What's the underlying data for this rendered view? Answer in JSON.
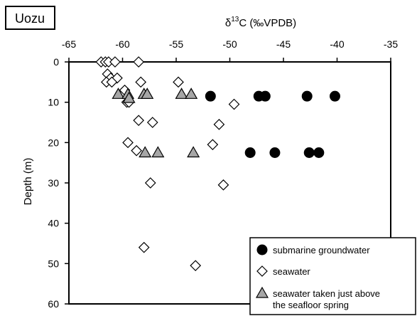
{
  "site_label": "Uozu",
  "chart_data": {
    "type": "scatter",
    "xlabel": {
      "delta": "δ",
      "sup": "13",
      "rest": "C (‰VPDB)"
    },
    "ylabel": "Depth (m)",
    "xlim": [
      -65,
      -35
    ],
    "ylim": [
      0,
      60
    ],
    "y_inverted": true,
    "x_axis_position": "top",
    "x_ticks": [
      -65,
      -60,
      -55,
      -50,
      -45,
      -40,
      -35
    ],
    "y_ticks": [
      0,
      10,
      20,
      30,
      40,
      50,
      60
    ],
    "grid": false,
    "legend_position": "bottom-right",
    "series": [
      {
        "name": "submarine groundwater",
        "marker": "circle",
        "color": "#000000",
        "points": [
          {
            "x": -51.8,
            "y": 8.5
          },
          {
            "x": -47.3,
            "y": 8.5
          },
          {
            "x": -46.7,
            "y": 8.5
          },
          {
            "x": -42.8,
            "y": 8.5
          },
          {
            "x": -40.2,
            "y": 8.5
          },
          {
            "x": -48.1,
            "y": 22.5
          },
          {
            "x": -45.8,
            "y": 22.5
          },
          {
            "x": -42.6,
            "y": 22.5
          },
          {
            "x": -41.7,
            "y": 22.5
          }
        ]
      },
      {
        "name": "seawater",
        "marker": "diamond",
        "color": "#ffffff",
        "points": [
          {
            "x": -62.0,
            "y": 0
          },
          {
            "x": -61.6,
            "y": 0
          },
          {
            "x": -61.3,
            "y": 0
          },
          {
            "x": -60.7,
            "y": 0
          },
          {
            "x": -58.5,
            "y": 0
          },
          {
            "x": -61.4,
            "y": 3
          },
          {
            "x": -61.1,
            "y": 4
          },
          {
            "x": -60.5,
            "y": 4
          },
          {
            "x": -61.5,
            "y": 5
          },
          {
            "x": -61.0,
            "y": 5
          },
          {
            "x": -58.3,
            "y": 5
          },
          {
            "x": -54.8,
            "y": 5
          },
          {
            "x": -59.8,
            "y": 7
          },
          {
            "x": -59.6,
            "y": 10
          },
          {
            "x": -59.4,
            "y": 10
          },
          {
            "x": -49.6,
            "y": 10.5
          },
          {
            "x": -58.5,
            "y": 14.5
          },
          {
            "x": -57.2,
            "y": 15
          },
          {
            "x": -51.0,
            "y": 15.5
          },
          {
            "x": -59.5,
            "y": 20
          },
          {
            "x": -51.6,
            "y": 20.5
          },
          {
            "x": -58.7,
            "y": 22
          },
          {
            "x": -57.4,
            "y": 30
          },
          {
            "x": -50.6,
            "y": 30.5
          },
          {
            "x": -58.0,
            "y": 46
          },
          {
            "x": -53.2,
            "y": 50.5
          }
        ]
      },
      {
        "name": "seawater taken just above the seafloor spring",
        "marker": "triangle",
        "color": "#a6a6a6",
        "points": [
          {
            "x": -60.4,
            "y": 8
          },
          {
            "x": -59.5,
            "y": 8
          },
          {
            "x": -58.0,
            "y": 8
          },
          {
            "x": -57.7,
            "y": 8
          },
          {
            "x": -54.5,
            "y": 8
          },
          {
            "x": -53.6,
            "y": 8
          },
          {
            "x": -59.4,
            "y": 9
          },
          {
            "x": -57.9,
            "y": 22.5
          },
          {
            "x": -56.7,
            "y": 22.5
          },
          {
            "x": -53.4,
            "y": 22.5
          }
        ]
      }
    ],
    "legend_lines": [
      [
        "submarine groundwater"
      ],
      [
        "seawater"
      ],
      [
        "seawater taken just above",
        "the seafloor spring"
      ]
    ]
  }
}
